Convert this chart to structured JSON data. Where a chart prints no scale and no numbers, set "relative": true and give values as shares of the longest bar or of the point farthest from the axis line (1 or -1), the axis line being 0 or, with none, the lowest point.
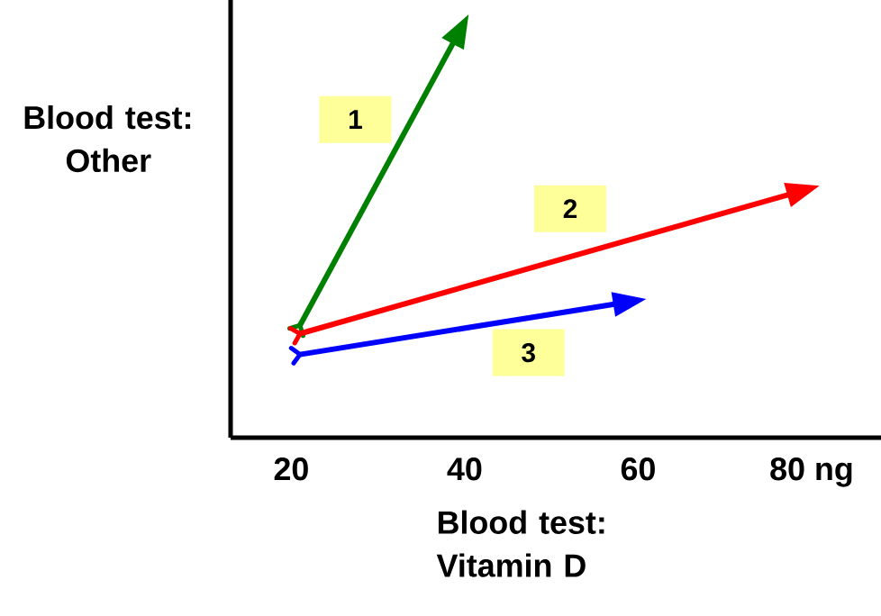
{
  "chart_data": {
    "type": "line",
    "relative": true,
    "xlabel": "Blood test: Vitamin D",
    "ylabel": "Blood test: Other",
    "xlim": [
      13,
      88
    ],
    "xticks": [
      20,
      40,
      60,
      {
        "value": 80,
        "label": "80 ng"
      }
    ],
    "tick_labels": "x",
    "marker": "none",
    "line_style": "solid",
    "series": [
      {
        "name": "1",
        "color": "#008000",
        "x": [
          21,
          40
        ],
        "values": [
          0.27,
          1
        ]
      },
      {
        "name": "2",
        "color": "#ff0000",
        "x": [
          21,
          80
        ],
        "values": [
          0.25,
          0.6
        ]
      },
      {
        "name": "3",
        "color": "#0000ff",
        "x": [
          21,
          60
        ],
        "values": [
          0.2,
          0.33
        ]
      }
    ]
  }
}
